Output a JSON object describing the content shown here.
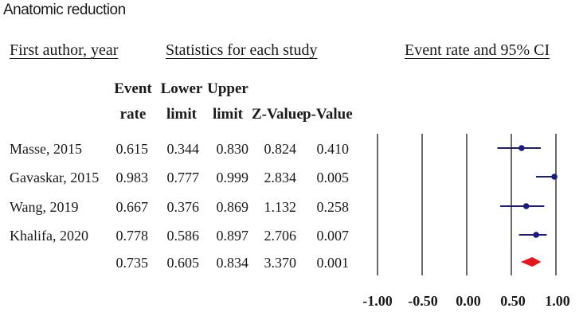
{
  "title": "Anatomic reduction",
  "headers": {
    "study": "First author, year",
    "stats": "Statistics for each study",
    "plot": "Event rate and 95% CI"
  },
  "columns": [
    {
      "line1": "Event",
      "line2": "rate"
    },
    {
      "line1": "Lower",
      "line2": "limit"
    },
    {
      "line1": "Upper",
      "line2": "limit"
    },
    {
      "line1": "",
      "line2": "Z-Value"
    },
    {
      "line1": "",
      "line2": "p-Value"
    }
  ],
  "rows": [
    {
      "study": "Masse, 2015",
      "event_rate": "0.615",
      "lower": "0.344",
      "upper": "0.830",
      "z": "0.824",
      "p": "0.410"
    },
    {
      "study": "Gavaskar, 2015",
      "event_rate": "0.983",
      "lower": "0.777",
      "upper": "0.999",
      "z": "2.834",
      "p": "0.005"
    },
    {
      "study": "Wang, 2019",
      "event_rate": "0.667",
      "lower": "0.376",
      "upper": "0.869",
      "z": "1.132",
      "p": "0.258"
    },
    {
      "study": "Khalifa, 2020",
      "event_rate": "0.778",
      "lower": "0.586",
      "upper": "0.897",
      "z": "2.706",
      "p": "0.007"
    },
    {
      "study": "",
      "event_rate": "0.735",
      "lower": "0.605",
      "upper": "0.834",
      "z": "3.370",
      "p": "0.001"
    }
  ],
  "chart_data": {
    "type": "forest",
    "title": "Event rate and 95% CI",
    "xlim": [
      -1.0,
      1.0
    ],
    "ticks": [
      "-1.00",
      "-0.50",
      "0.00",
      "0.50",
      "1.00"
    ],
    "studies": [
      {
        "name": "Masse, 2015",
        "estimate": 0.615,
        "lower": 0.344,
        "upper": 0.83
      },
      {
        "name": "Gavaskar, 2015",
        "estimate": 0.983,
        "lower": 0.777,
        "upper": 0.999
      },
      {
        "name": "Wang, 2019",
        "estimate": 0.667,
        "lower": 0.376,
        "upper": 0.869
      },
      {
        "name": "Khalifa, 2020",
        "estimate": 0.778,
        "lower": 0.586,
        "upper": 0.897
      }
    ],
    "summary": {
      "estimate": 0.735,
      "lower": 0.605,
      "upper": 0.834
    },
    "colors": {
      "study": "#1c1c7a",
      "summary": "#e8141c",
      "lines": "#1a1a1a"
    }
  }
}
